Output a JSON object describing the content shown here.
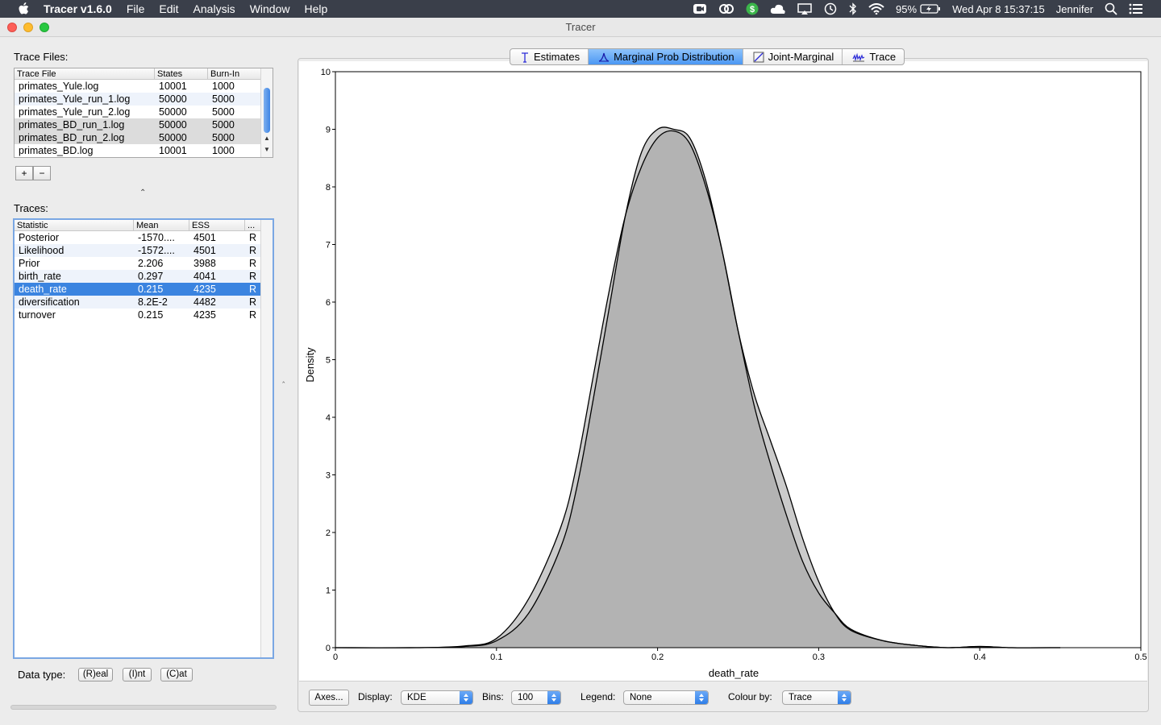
{
  "menubar": {
    "app_name": "Tracer v1.6.0",
    "menus": [
      "File",
      "Edit",
      "Analysis",
      "Window",
      "Help"
    ],
    "battery": "95%",
    "datetime": "Wed Apr 8  15:37:15",
    "user": "Jennifer"
  },
  "window": {
    "title": "Tracer"
  },
  "trace_files": {
    "label": "Trace Files:",
    "columns": [
      "Trace File",
      "States",
      "Burn-In"
    ],
    "rows": [
      [
        "primates_Yule.log",
        "10001",
        "1000"
      ],
      [
        "primates_Yule_run_1.log",
        "50000",
        "5000"
      ],
      [
        "primates_Yule_run_2.log",
        "50000",
        "5000"
      ],
      [
        "primates_BD_run_1.log",
        "50000",
        "5000"
      ],
      [
        "primates_BD_run_2.log",
        "50000",
        "5000"
      ],
      [
        "primates_BD.log",
        "10001",
        "1000"
      ]
    ],
    "add_label": "+",
    "remove_label": "−"
  },
  "traces": {
    "label": "Traces:",
    "columns": [
      "Statistic",
      "Mean",
      "ESS",
      "..."
    ],
    "rows": [
      [
        "Posterior",
        "-1570....",
        "4501",
        "R"
      ],
      [
        "Likelihood",
        "-1572....",
        "4501",
        "R"
      ],
      [
        "Prior",
        "2.206",
        "3988",
        "R"
      ],
      [
        "birth_rate",
        "0.297",
        "4041",
        "R"
      ],
      [
        "death_rate",
        "0.215",
        "4235",
        "R"
      ],
      [
        "diversification",
        "8.2E-2",
        "4482",
        "R"
      ],
      [
        "turnover",
        "0.215",
        "4235",
        "R"
      ]
    ],
    "selected_index": 4
  },
  "data_type": {
    "label": "Data type:",
    "real": "(R)eal",
    "int": "(I)nt",
    "cat": "(C)at"
  },
  "tabs": [
    {
      "label": "Estimates",
      "icon": "estimates-icon"
    },
    {
      "label": "Marginal Prob Distribution",
      "icon": "distribution-icon",
      "active": true
    },
    {
      "label": "Joint-Marginal",
      "icon": "joint-marginal-icon"
    },
    {
      "label": "Trace",
      "icon": "trace-icon"
    }
  ],
  "chart_data": {
    "type": "area",
    "xlabel": "death_rate",
    "ylabel": "Density",
    "xlim": [
      0,
      0.5
    ],
    "ylim": [
      0,
      10
    ],
    "xticks": [
      "0",
      "0.1",
      "0.2",
      "0.3",
      "0.4",
      "0.5"
    ],
    "yticks": [
      "0",
      "1",
      "2",
      "3",
      "4",
      "5",
      "6",
      "7",
      "8",
      "9",
      "10"
    ],
    "series": [
      {
        "x": [
          0.0,
          0.05,
          0.08,
          0.1,
          0.12,
          0.14,
          0.15,
          0.16,
          0.17,
          0.18,
          0.19,
          0.2,
          0.21,
          0.22,
          0.23,
          0.24,
          0.25,
          0.26,
          0.27,
          0.28,
          0.29,
          0.3,
          0.31,
          0.32,
          0.34,
          0.36,
          0.38,
          0.4,
          0.42,
          0.45
        ],
        "values": [
          0.0,
          0.0,
          0.02,
          0.12,
          0.6,
          1.75,
          2.8,
          4.3,
          5.9,
          7.5,
          8.6,
          9.0,
          9.0,
          8.85,
          8.1,
          6.9,
          5.5,
          4.4,
          3.6,
          2.8,
          1.9,
          1.15,
          0.6,
          0.3,
          0.12,
          0.04,
          0.0,
          0.02,
          0.0,
          0.0
        ]
      },
      {
        "x": [
          0.0,
          0.05,
          0.08,
          0.1,
          0.12,
          0.14,
          0.15,
          0.16,
          0.17,
          0.18,
          0.19,
          0.2,
          0.21,
          0.22,
          0.23,
          0.24,
          0.25,
          0.26,
          0.27,
          0.28,
          0.29,
          0.3,
          0.31,
          0.32,
          0.34,
          0.36,
          0.38,
          0.4,
          0.42,
          0.45
        ],
        "values": [
          0.0,
          0.0,
          0.03,
          0.16,
          0.85,
          2.1,
          3.2,
          4.7,
          6.2,
          7.5,
          8.35,
          8.85,
          8.97,
          8.75,
          8.0,
          6.9,
          5.5,
          4.2,
          3.2,
          2.3,
          1.5,
          0.95,
          0.6,
          0.32,
          0.12,
          0.04,
          0.0,
          0.02,
          0.0,
          0.0
        ]
      }
    ]
  },
  "bottom_bar": {
    "axes_label": "Axes...",
    "display_label": "Display:",
    "display_value": "KDE",
    "bins_label": "Bins:",
    "bins_value": "100",
    "legend_label": "Legend:",
    "legend_value": "None",
    "colour_label": "Colour by:",
    "colour_value": "Trace"
  }
}
